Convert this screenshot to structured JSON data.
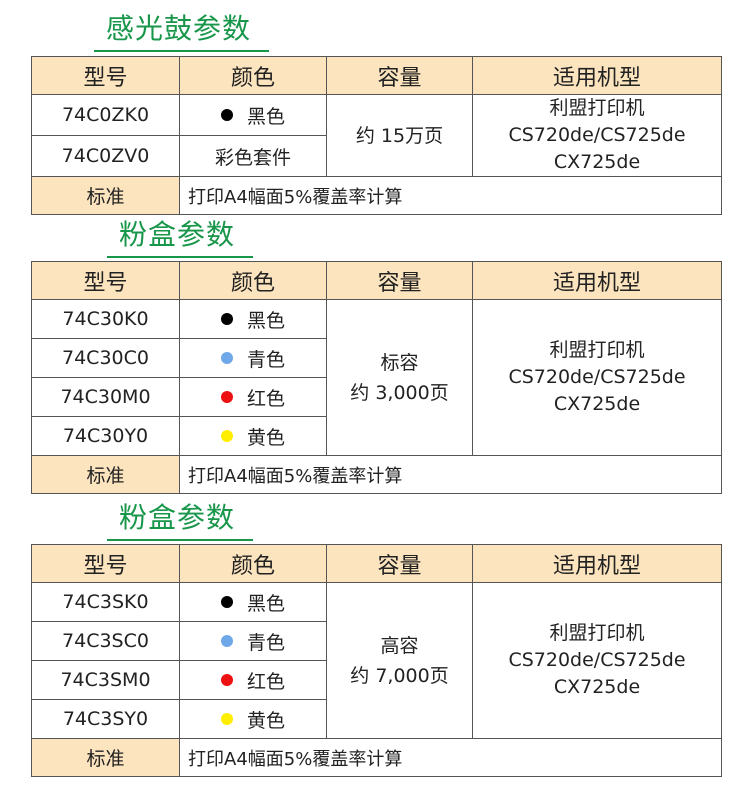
{
  "headers": {
    "model": "型号",
    "color": "颜色",
    "capacity": "容量",
    "fit": "适用机型"
  },
  "standard_label": "标准",
  "standard_text": "打印A4幅面5%覆盖率计算",
  "fit_models": [
    "利盟打印机",
    "CS720de/CS725de",
    "CX725de"
  ],
  "drum": {
    "title": "感光鼓参数",
    "capacity": [
      "约 15万页"
    ],
    "rows": [
      {
        "model": "74C0ZK0",
        "color": "黑色",
        "dot": "#000000"
      },
      {
        "model": "74C0ZV0",
        "color": "彩色套件",
        "dot": ""
      }
    ]
  },
  "toner_std": {
    "title": "粉盒参数",
    "capacity": [
      "标容",
      "约 3,000页"
    ],
    "rows": [
      {
        "model": "74C30K0",
        "color": "黑色",
        "dot": "#000000"
      },
      {
        "model": "74C30C0",
        "color": "青色",
        "dot": "#6fa8e8"
      },
      {
        "model": "74C30M0",
        "color": "红色",
        "dot": "#ee1111"
      },
      {
        "model": "74C30Y0",
        "color": "黄色",
        "dot": "#ffee00"
      }
    ]
  },
  "toner_high": {
    "title": "粉盒参数",
    "capacity": [
      "高容",
      "约 7,000页"
    ],
    "rows": [
      {
        "model": "74C3SK0",
        "color": "黑色",
        "dot": "#000000"
      },
      {
        "model": "74C3SC0",
        "color": "青色",
        "dot": "#6fa8e8"
      },
      {
        "model": "74C3SM0",
        "color": "红色",
        "dot": "#ee1111"
      },
      {
        "model": "74C3SY0",
        "color": "黄色",
        "dot": "#ffee00"
      }
    ]
  }
}
